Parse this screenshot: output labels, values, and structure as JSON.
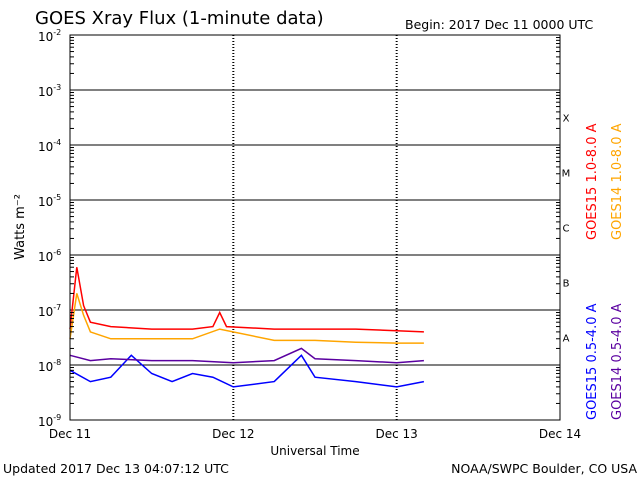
{
  "title": "GOES Xray Flux (1-minute data)",
  "begin_label": "Begin:  2017 Dec 11 0000 UTC",
  "footer": {
    "updated": "Updated 2017 Dec 13 04:07:12 UTC",
    "source": "NOAA/SWPC Boulder, CO USA"
  },
  "chart_data": {
    "type": "line",
    "title": "GOES Xray Flux (1-minute data)",
    "xlabel": "Universal Time",
    "ylabel": "Watts m⁻²",
    "yscale": "log",
    "ylim": [
      1e-09,
      0.01
    ],
    "xlim": [
      "2017-12-11",
      "2017-12-14"
    ],
    "x_ticks": [
      {
        "x": "2017-12-11",
        "label": "Dec 11"
      },
      {
        "x": "2017-12-12",
        "label": "Dec 12"
      },
      {
        "x": "2017-12-13",
        "label": "Dec 13"
      },
      {
        "x": "2017-12-14",
        "label": "Dec 14"
      }
    ],
    "y_ticks": [
      {
        "value": 1e-09,
        "base": "10",
        "exp": "-9"
      },
      {
        "value": 1e-08,
        "base": "10",
        "exp": "-8"
      },
      {
        "value": 1e-07,
        "base": "10",
        "exp": "-7"
      },
      {
        "value": 1e-06,
        "base": "10",
        "exp": "-6"
      },
      {
        "value": 1e-05,
        "base": "10",
        "exp": "-5"
      },
      {
        "value": 0.0001,
        "base": "10",
        "exp": "-4"
      },
      {
        "value": 0.001,
        "base": "10",
        "exp": "-3"
      },
      {
        "value": 0.01,
        "base": "10",
        "exp": "-2"
      }
    ],
    "flare_classes": [
      {
        "label": "A",
        "value": 1e-08
      },
      {
        "label": "B",
        "value": 1e-07
      },
      {
        "label": "C",
        "value": 1e-06
      },
      {
        "label": "M",
        "value": 1e-05
      },
      {
        "label": "X",
        "value": 0.0001
      }
    ],
    "grid": "horizontal lines at decades from 1e-8 to 1e-3; dotted vertical lines at day boundaries",
    "series": [
      {
        "name": "GOES15 1.0-8.0 A",
        "color": "#ff0000",
        "x": [
          "2017-12-11T00:00",
          "2017-12-11T01:00",
          "2017-12-11T02:00",
          "2017-12-11T03:00",
          "2017-12-11T06:00",
          "2017-12-11T12:00",
          "2017-12-11T18:00",
          "2017-12-11T21:00",
          "2017-12-11T22:00",
          "2017-12-11T23:00",
          "2017-12-12T06:00",
          "2017-12-12T12:00",
          "2017-12-12T18:00",
          "2017-12-13T00:00",
          "2017-12-13T04:00"
        ],
        "y": [
          4.5e-08,
          6e-07,
          1.2e-07,
          6e-08,
          5e-08,
          4.5e-08,
          4.5e-08,
          5e-08,
          9e-08,
          5e-08,
          4.5e-08,
          4.5e-08,
          4.5e-08,
          4.2e-08,
          4e-08
        ]
      },
      {
        "name": "GOES14 1.0-8.0 A",
        "color": "#ffa500",
        "x": [
          "2017-12-11T00:00",
          "2017-12-11T01:00",
          "2017-12-11T02:00",
          "2017-12-11T03:00",
          "2017-12-11T06:00",
          "2017-12-11T12:00",
          "2017-12-11T18:00",
          "2017-12-11T22:00",
          "2017-12-12T06:00",
          "2017-12-12T12:00",
          "2017-12-12T18:00",
          "2017-12-13T00:00",
          "2017-12-13T04:00"
        ],
        "y": [
          3e-08,
          2e-07,
          8e-08,
          4e-08,
          3e-08,
          3e-08,
          3e-08,
          4.5e-08,
          2.8e-08,
          2.8e-08,
          2.6e-08,
          2.5e-08,
          2.5e-08
        ]
      },
      {
        "name": "GOES15 0.5-4.0 A",
        "color": "#0000ff",
        "x": [
          "2017-12-11T00:00",
          "2017-12-11T03:00",
          "2017-12-11T06:00",
          "2017-12-11T09:00",
          "2017-12-11T12:00",
          "2017-12-11T15:00",
          "2017-12-11T18:00",
          "2017-12-11T21:00",
          "2017-12-12T00:00",
          "2017-12-12T06:00",
          "2017-12-12T10:00",
          "2017-12-12T12:00",
          "2017-12-12T18:00",
          "2017-12-13T00:00",
          "2017-12-13T04:00"
        ],
        "y": [
          8e-09,
          5e-09,
          6e-09,
          1.5e-08,
          7e-09,
          5e-09,
          7e-09,
          6e-09,
          4e-09,
          5e-09,
          1.5e-08,
          6e-09,
          5e-09,
          4e-09,
          5e-09
        ]
      },
      {
        "name": "GOES14 0.5-4.0 A",
        "color": "#5a00a0",
        "x": [
          "2017-12-11T00:00",
          "2017-12-11T03:00",
          "2017-12-11T06:00",
          "2017-12-11T12:00",
          "2017-12-11T18:00",
          "2017-12-12T00:00",
          "2017-12-12T06:00",
          "2017-12-12T10:00",
          "2017-12-12T12:00",
          "2017-12-12T18:00",
          "2017-12-13T00:00",
          "2017-12-13T04:00"
        ],
        "y": [
          1.5e-08,
          1.2e-08,
          1.3e-08,
          1.2e-08,
          1.2e-08,
          1.1e-08,
          1.2e-08,
          2e-08,
          1.3e-08,
          1.2e-08,
          1.1e-08,
          1.2e-08
        ]
      }
    ]
  }
}
